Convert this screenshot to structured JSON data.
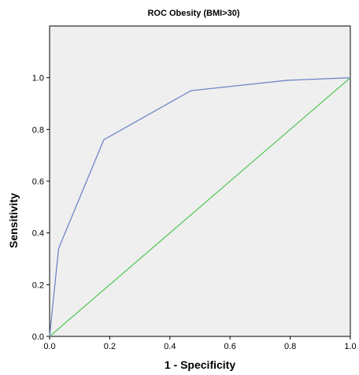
{
  "chart_data": {
    "type": "line",
    "title": "ROC  Obesity (BMI>30)",
    "xlabel": "1 - Specificity",
    "ylabel": "Sensitivity",
    "xlim": [
      0,
      1
    ],
    "ylim": [
      0,
      1.2
    ],
    "x_ticks": [
      "0.0",
      "0.2",
      "0.4",
      "0.6",
      "0.8",
      "1.0"
    ],
    "y_ticks": [
      "0.0",
      "0.2",
      "0.4",
      "0.6",
      "0.8",
      "1.0"
    ],
    "grid": false,
    "colors": {
      "plot_background": "#efefef",
      "roc_curve": "#6f86c8",
      "reference_line": "#5cc85c"
    },
    "series": [
      {
        "x": [
          0.0,
          0.03,
          0.18,
          0.47,
          0.79,
          1.0
        ],
        "y": [
          0.0,
          0.34,
          0.76,
          0.95,
          0.99,
          1.0
        ]
      },
      {
        "x": [
          0.0,
          1.0
        ],
        "y": [
          0.0,
          1.0
        ]
      }
    ]
  }
}
